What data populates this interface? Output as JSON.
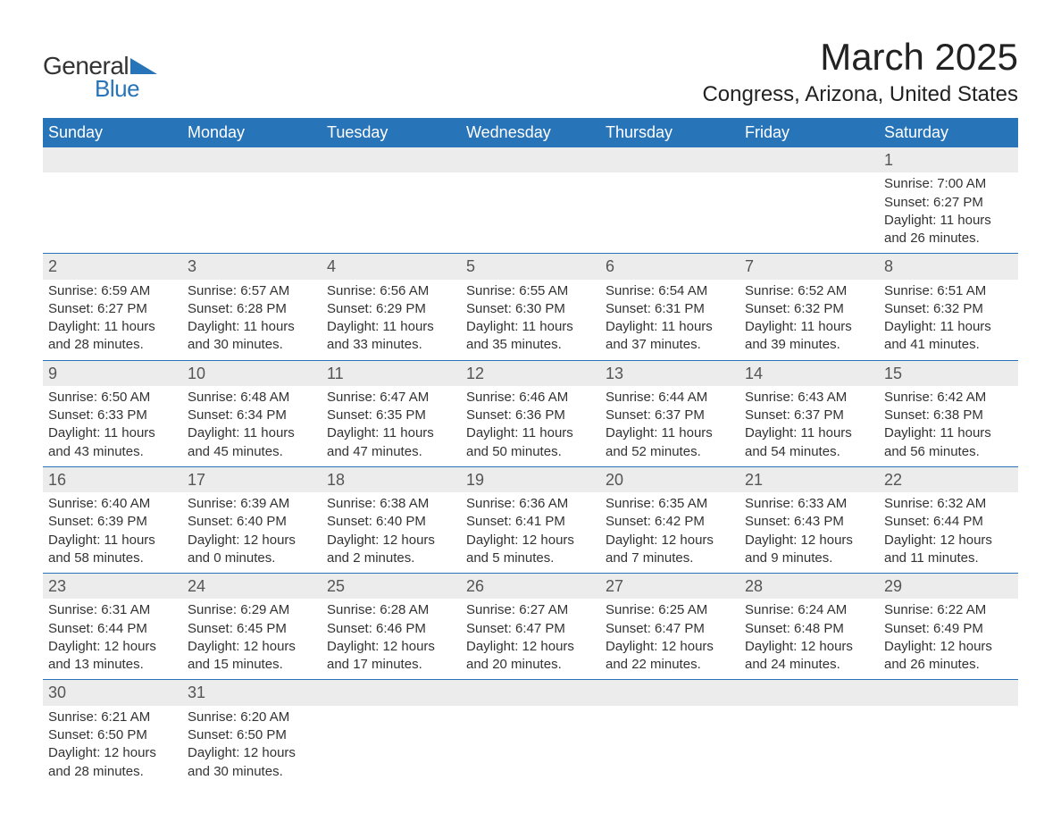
{
  "logo": {
    "text1": "General",
    "text2": "Blue",
    "accent_color": "#2874b8"
  },
  "title": "March 2025",
  "location": "Congress, Arizona, United States",
  "colors": {
    "header_bg": "#2874b8",
    "header_text": "#ffffff",
    "daynum_bg": "#ececec",
    "row_border": "#2874b8",
    "text": "#333333"
  },
  "day_headers": [
    "Sunday",
    "Monday",
    "Tuesday",
    "Wednesday",
    "Thursday",
    "Friday",
    "Saturday"
  ],
  "weeks": [
    [
      {
        "empty": true
      },
      {
        "empty": true
      },
      {
        "empty": true
      },
      {
        "empty": true
      },
      {
        "empty": true
      },
      {
        "empty": true
      },
      {
        "day": "1",
        "sunrise": "Sunrise: 7:00 AM",
        "sunset": "Sunset: 6:27 PM",
        "daylight1": "Daylight: 11 hours",
        "daylight2": "and 26 minutes."
      }
    ],
    [
      {
        "day": "2",
        "sunrise": "Sunrise: 6:59 AM",
        "sunset": "Sunset: 6:27 PM",
        "daylight1": "Daylight: 11 hours",
        "daylight2": "and 28 minutes."
      },
      {
        "day": "3",
        "sunrise": "Sunrise: 6:57 AM",
        "sunset": "Sunset: 6:28 PM",
        "daylight1": "Daylight: 11 hours",
        "daylight2": "and 30 minutes."
      },
      {
        "day": "4",
        "sunrise": "Sunrise: 6:56 AM",
        "sunset": "Sunset: 6:29 PM",
        "daylight1": "Daylight: 11 hours",
        "daylight2": "and 33 minutes."
      },
      {
        "day": "5",
        "sunrise": "Sunrise: 6:55 AM",
        "sunset": "Sunset: 6:30 PM",
        "daylight1": "Daylight: 11 hours",
        "daylight2": "and 35 minutes."
      },
      {
        "day": "6",
        "sunrise": "Sunrise: 6:54 AM",
        "sunset": "Sunset: 6:31 PM",
        "daylight1": "Daylight: 11 hours",
        "daylight2": "and 37 minutes."
      },
      {
        "day": "7",
        "sunrise": "Sunrise: 6:52 AM",
        "sunset": "Sunset: 6:32 PM",
        "daylight1": "Daylight: 11 hours",
        "daylight2": "and 39 minutes."
      },
      {
        "day": "8",
        "sunrise": "Sunrise: 6:51 AM",
        "sunset": "Sunset: 6:32 PM",
        "daylight1": "Daylight: 11 hours",
        "daylight2": "and 41 minutes."
      }
    ],
    [
      {
        "day": "9",
        "sunrise": "Sunrise: 6:50 AM",
        "sunset": "Sunset: 6:33 PM",
        "daylight1": "Daylight: 11 hours",
        "daylight2": "and 43 minutes."
      },
      {
        "day": "10",
        "sunrise": "Sunrise: 6:48 AM",
        "sunset": "Sunset: 6:34 PM",
        "daylight1": "Daylight: 11 hours",
        "daylight2": "and 45 minutes."
      },
      {
        "day": "11",
        "sunrise": "Sunrise: 6:47 AM",
        "sunset": "Sunset: 6:35 PM",
        "daylight1": "Daylight: 11 hours",
        "daylight2": "and 47 minutes."
      },
      {
        "day": "12",
        "sunrise": "Sunrise: 6:46 AM",
        "sunset": "Sunset: 6:36 PM",
        "daylight1": "Daylight: 11 hours",
        "daylight2": "and 50 minutes."
      },
      {
        "day": "13",
        "sunrise": "Sunrise: 6:44 AM",
        "sunset": "Sunset: 6:37 PM",
        "daylight1": "Daylight: 11 hours",
        "daylight2": "and 52 minutes."
      },
      {
        "day": "14",
        "sunrise": "Sunrise: 6:43 AM",
        "sunset": "Sunset: 6:37 PM",
        "daylight1": "Daylight: 11 hours",
        "daylight2": "and 54 minutes."
      },
      {
        "day": "15",
        "sunrise": "Sunrise: 6:42 AM",
        "sunset": "Sunset: 6:38 PM",
        "daylight1": "Daylight: 11 hours",
        "daylight2": "and 56 minutes."
      }
    ],
    [
      {
        "day": "16",
        "sunrise": "Sunrise: 6:40 AM",
        "sunset": "Sunset: 6:39 PM",
        "daylight1": "Daylight: 11 hours",
        "daylight2": "and 58 minutes."
      },
      {
        "day": "17",
        "sunrise": "Sunrise: 6:39 AM",
        "sunset": "Sunset: 6:40 PM",
        "daylight1": "Daylight: 12 hours",
        "daylight2": "and 0 minutes."
      },
      {
        "day": "18",
        "sunrise": "Sunrise: 6:38 AM",
        "sunset": "Sunset: 6:40 PM",
        "daylight1": "Daylight: 12 hours",
        "daylight2": "and 2 minutes."
      },
      {
        "day": "19",
        "sunrise": "Sunrise: 6:36 AM",
        "sunset": "Sunset: 6:41 PM",
        "daylight1": "Daylight: 12 hours",
        "daylight2": "and 5 minutes."
      },
      {
        "day": "20",
        "sunrise": "Sunrise: 6:35 AM",
        "sunset": "Sunset: 6:42 PM",
        "daylight1": "Daylight: 12 hours",
        "daylight2": "and 7 minutes."
      },
      {
        "day": "21",
        "sunrise": "Sunrise: 6:33 AM",
        "sunset": "Sunset: 6:43 PM",
        "daylight1": "Daylight: 12 hours",
        "daylight2": "and 9 minutes."
      },
      {
        "day": "22",
        "sunrise": "Sunrise: 6:32 AM",
        "sunset": "Sunset: 6:44 PM",
        "daylight1": "Daylight: 12 hours",
        "daylight2": "and 11 minutes."
      }
    ],
    [
      {
        "day": "23",
        "sunrise": "Sunrise: 6:31 AM",
        "sunset": "Sunset: 6:44 PM",
        "daylight1": "Daylight: 12 hours",
        "daylight2": "and 13 minutes."
      },
      {
        "day": "24",
        "sunrise": "Sunrise: 6:29 AM",
        "sunset": "Sunset: 6:45 PM",
        "daylight1": "Daylight: 12 hours",
        "daylight2": "and 15 minutes."
      },
      {
        "day": "25",
        "sunrise": "Sunrise: 6:28 AM",
        "sunset": "Sunset: 6:46 PM",
        "daylight1": "Daylight: 12 hours",
        "daylight2": "and 17 minutes."
      },
      {
        "day": "26",
        "sunrise": "Sunrise: 6:27 AM",
        "sunset": "Sunset: 6:47 PM",
        "daylight1": "Daylight: 12 hours",
        "daylight2": "and 20 minutes."
      },
      {
        "day": "27",
        "sunrise": "Sunrise: 6:25 AM",
        "sunset": "Sunset: 6:47 PM",
        "daylight1": "Daylight: 12 hours",
        "daylight2": "and 22 minutes."
      },
      {
        "day": "28",
        "sunrise": "Sunrise: 6:24 AM",
        "sunset": "Sunset: 6:48 PM",
        "daylight1": "Daylight: 12 hours",
        "daylight2": "and 24 minutes."
      },
      {
        "day": "29",
        "sunrise": "Sunrise: 6:22 AM",
        "sunset": "Sunset: 6:49 PM",
        "daylight1": "Daylight: 12 hours",
        "daylight2": "and 26 minutes."
      }
    ],
    [
      {
        "day": "30",
        "sunrise": "Sunrise: 6:21 AM",
        "sunset": "Sunset: 6:50 PM",
        "daylight1": "Daylight: 12 hours",
        "daylight2": "and 28 minutes."
      },
      {
        "day": "31",
        "sunrise": "Sunrise: 6:20 AM",
        "sunset": "Sunset: 6:50 PM",
        "daylight1": "Daylight: 12 hours",
        "daylight2": "and 30 minutes."
      },
      {
        "empty": true
      },
      {
        "empty": true
      },
      {
        "empty": true
      },
      {
        "empty": true
      },
      {
        "empty": true
      }
    ]
  ]
}
